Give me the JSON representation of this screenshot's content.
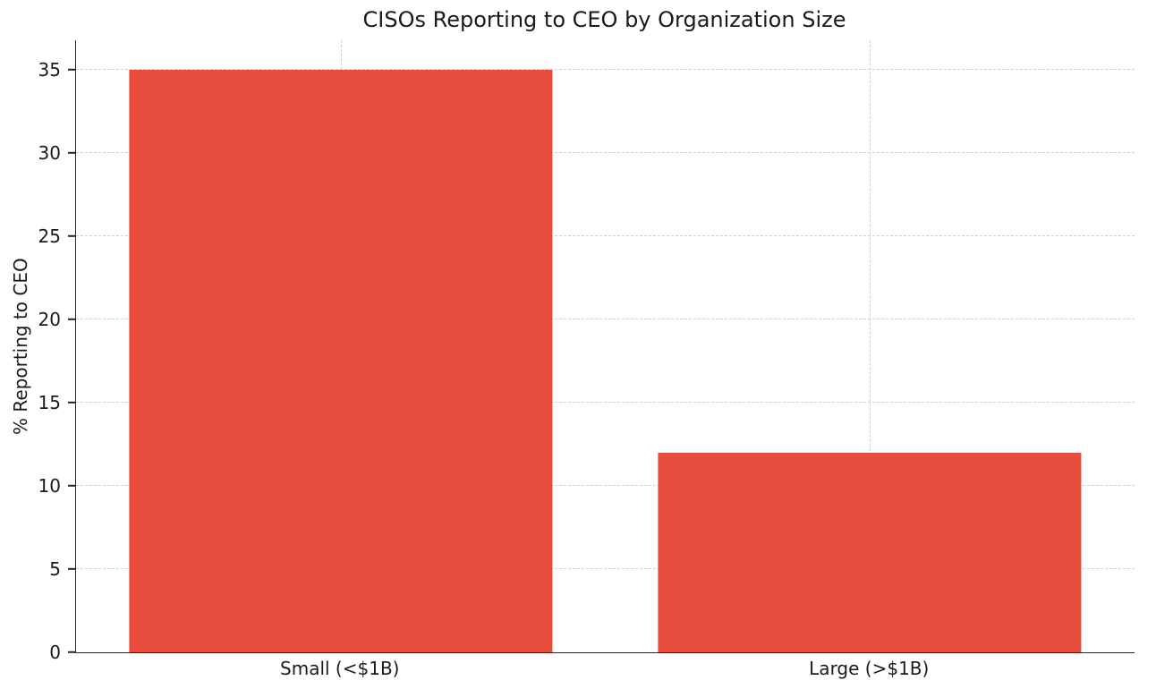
{
  "chart_data": {
    "type": "bar",
    "title": "CISOs Reporting to CEO by Organization Size",
    "xlabel": "",
    "ylabel": "% Reporting to CEO",
    "categories": [
      "Small (<$1B)",
      "Large (>$1B)"
    ],
    "values": [
      35,
      12
    ],
    "yticks": [
      0,
      5,
      10,
      15,
      20,
      25,
      30,
      35
    ],
    "ylim": [
      0,
      36.75
    ],
    "bar_color": "#e74c3c",
    "bar_width_fraction": 0.8,
    "grid": "dashed",
    "grid_color": "#cfcfcf",
    "legend": "none"
  }
}
